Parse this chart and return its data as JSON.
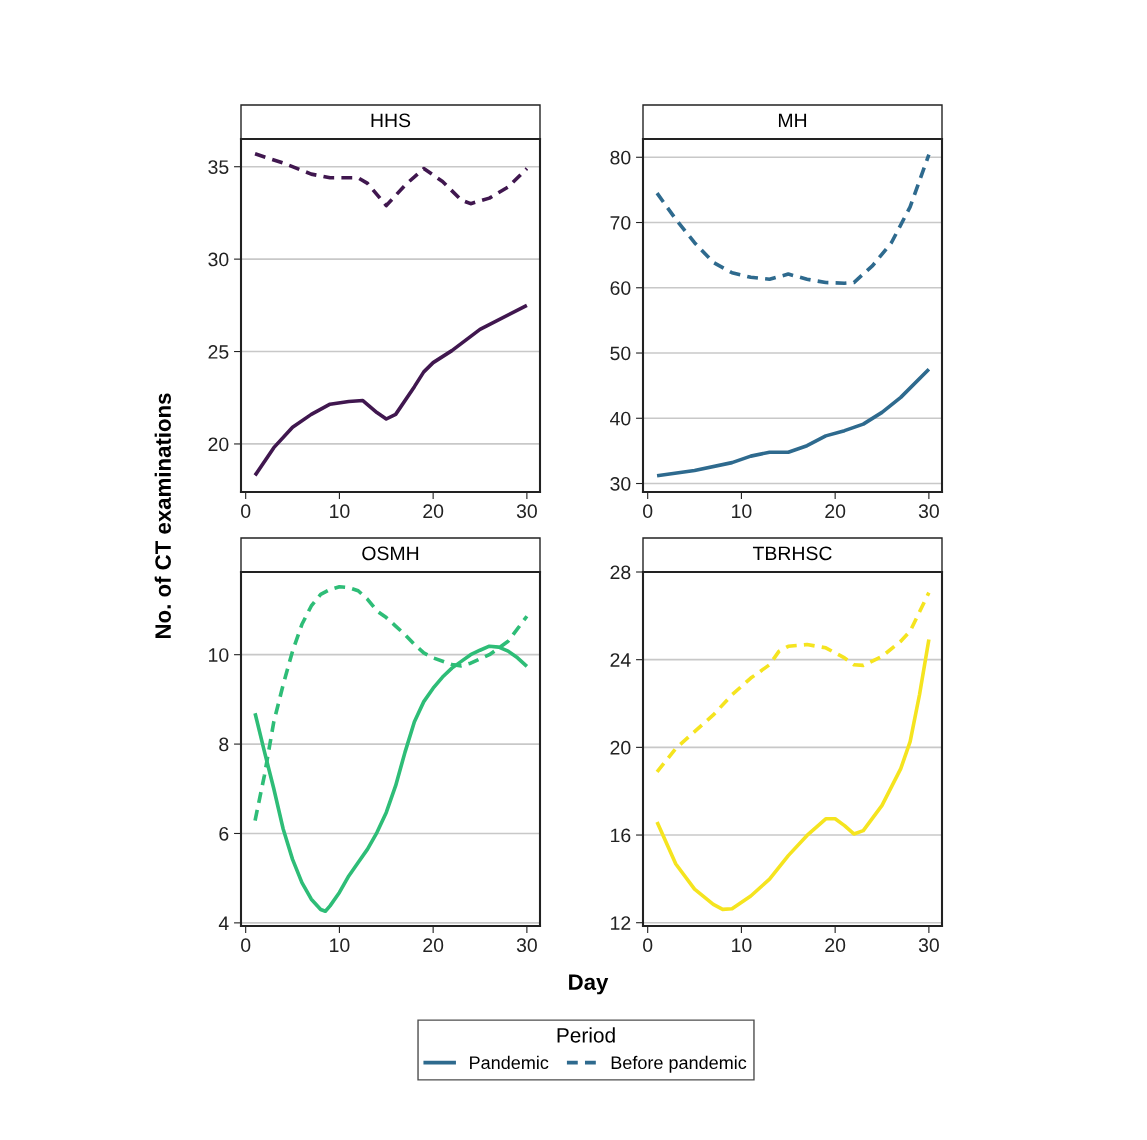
{
  "chart_data": [
    {
      "type": "line",
      "title": "HHS",
      "ylabel": "No. of CT examinations",
      "xlim": [
        -0.5,
        31.4
      ],
      "xticks": [
        0,
        10,
        20,
        30
      ],
      "ylim": [
        17.4,
        36.5
      ],
      "yticks": [
        20,
        25,
        30,
        35
      ],
      "grid": "y",
      "series": [
        {
          "color": "#40174f",
          "line_style": "solid",
          "x": [
            1,
            3,
            5,
            7,
            9,
            11,
            12.5,
            14,
            15,
            16,
            18,
            19,
            20,
            22,
            25,
            30
          ],
          "values": [
            18.3,
            19.8,
            20.9,
            21.6,
            22.15,
            22.3,
            22.35,
            21.7,
            21.35,
            21.6,
            23.1,
            23.9,
            24.4,
            25.05,
            26.2,
            27.5
          ]
        },
        {
          "color": "#40174f",
          "line_style": "dashed",
          "x": [
            1,
            4,
            7,
            9,
            12,
            13,
            15,
            17,
            19,
            21,
            23,
            24,
            26,
            28,
            30
          ],
          "values": [
            35.7,
            35.2,
            34.6,
            34.4,
            34.4,
            34.1,
            32.9,
            34.0,
            34.9,
            34.2,
            33.2,
            33.0,
            33.3,
            33.9,
            34.9
          ]
        }
      ]
    },
    {
      "type": "line",
      "title": "MH",
      "xlim": [
        -0.5,
        31.4
      ],
      "xticks": [
        0,
        10,
        20,
        30
      ],
      "ylim": [
        28.7,
        82.8
      ],
      "yticks": [
        30,
        40,
        50,
        60,
        70,
        80
      ],
      "grid": "y",
      "legend": "bottom",
      "legend_title": "Period",
      "series": [
        {
          "name": "Pandemic",
          "color": "#2e6a8e",
          "line_style": "solid",
          "x": [
            1,
            5,
            9,
            11,
            13,
            15,
            17,
            19,
            21,
            23,
            25,
            27,
            30
          ],
          "values": [
            31.2,
            32,
            33.2,
            34.2,
            34.8,
            34.8,
            35.8,
            37.3,
            38.1,
            39.1,
            40.9,
            43.2,
            47.5
          ]
        },
        {
          "name": "Before pandemic",
          "color": "#2e6a8e",
          "line_style": "dashed",
          "x": [
            1,
            3,
            5,
            7,
            9,
            11,
            13,
            15,
            17,
            19,
            21,
            22,
            24,
            26,
            28,
            30
          ],
          "values": [
            74.5,
            70.5,
            66.9,
            63.9,
            62.3,
            61.6,
            61.3,
            62.1,
            61.3,
            60.8,
            60.7,
            60.8,
            63.4,
            66.9,
            72.4,
            80.4
          ]
        }
      ]
    },
    {
      "type": "line",
      "title": "OSMH",
      "xlabel": "Day",
      "xlim": [
        -0.5,
        31.4
      ],
      "xticks": [
        0,
        10,
        20,
        30
      ],
      "ylim": [
        3.93,
        11.85
      ],
      "yticks": [
        4,
        6,
        8,
        10
      ],
      "grid": "y",
      "series": [
        {
          "color": "#2ebd77",
          "line_style": "solid",
          "x": [
            1,
            2,
            3,
            4,
            5,
            6,
            7,
            8,
            8.5,
            9,
            10,
            11,
            12,
            13,
            14,
            15,
            16,
            17,
            18,
            19,
            20,
            21,
            22,
            23,
            24,
            25,
            26,
            27,
            28,
            29,
            30
          ],
          "values": [
            8.69,
            7.83,
            7.0,
            6.1,
            5.42,
            4.9,
            4.53,
            4.3,
            4.26,
            4.38,
            4.68,
            5.05,
            5.35,
            5.65,
            6.02,
            6.47,
            7.07,
            7.82,
            8.5,
            8.95,
            9.25,
            9.5,
            9.7,
            9.85,
            10.0,
            10.1,
            10.19,
            10.17,
            10.08,
            9.93,
            9.74
          ]
        },
        {
          "color": "#2ebd77",
          "line_style": "dashed",
          "x": [
            1,
            2,
            3,
            4,
            5,
            6,
            7,
            8,
            9,
            10,
            11,
            12,
            13,
            14,
            15,
            16,
            17,
            18,
            19,
            20,
            22,
            23,
            24,
            26,
            28,
            30
          ],
          "values": [
            6.29,
            7.3,
            8.5,
            9.33,
            10.08,
            10.68,
            11.09,
            11.35,
            11.46,
            11.52,
            11.5,
            11.43,
            11.24,
            10.98,
            10.83,
            10.64,
            10.45,
            10.23,
            10.04,
            9.93,
            9.78,
            9.75,
            9.81,
            10.0,
            10.3,
            10.86
          ]
        }
      ]
    },
    {
      "type": "line",
      "title": "TBRHSC",
      "xlim": [
        -0.5,
        31.4
      ],
      "xticks": [
        0,
        10,
        20,
        30
      ],
      "ylim": [
        11.85,
        28
      ],
      "yticks": [
        12,
        16,
        20,
        24,
        28
      ],
      "grid": "y",
      "series": [
        {
          "color": "#f5e41f",
          "line_style": "solid",
          "x": [
            1,
            3,
            5,
            7,
            8,
            9,
            11,
            13,
            15,
            17,
            19,
            20,
            21,
            22,
            23,
            25,
            27,
            28,
            29,
            30
          ],
          "values": [
            16.59,
            14.68,
            13.53,
            12.84,
            12.61,
            12.64,
            13.22,
            13.99,
            15.06,
            15.98,
            16.74,
            16.74,
            16.43,
            16.05,
            16.2,
            17.35,
            19.03,
            20.26,
            22.4,
            24.92
          ]
        },
        {
          "color": "#f5e41f",
          "line_style": "dashed",
          "x": [
            1,
            3,
            5,
            7,
            9,
            11,
            13,
            14,
            15,
            17,
            19,
            21,
            22,
            23,
            25,
            27,
            28,
            30
          ],
          "values": [
            18.88,
            19.95,
            20.72,
            21.48,
            22.4,
            23.16,
            23.77,
            24.38,
            24.61,
            24.69,
            24.54,
            24.08,
            23.77,
            23.74,
            24.15,
            24.84,
            25.3,
            27.06
          ]
        }
      ]
    }
  ]
}
